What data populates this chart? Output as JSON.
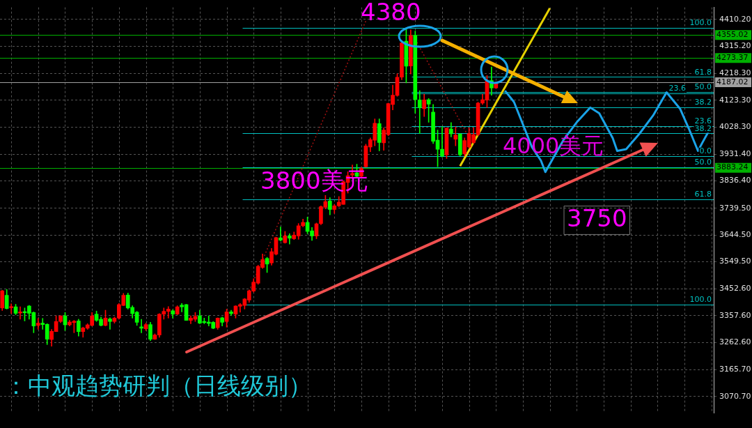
{
  "chart_data": {
    "type": "candlestick",
    "categories": [
      null,
      null,
      null,
      null,
      null,
      null,
      null,
      null,
      null,
      null,
      null,
      null,
      null,
      null,
      null,
      null,
      null,
      null,
      null,
      null,
      null,
      null,
      null,
      null,
      null,
      null,
      null,
      null,
      null,
      null,
      null,
      null,
      null,
      null,
      null,
      null,
      null,
      null,
      null,
      null,
      null,
      null,
      null,
      null,
      null,
      null,
      null,
      null,
      null,
      null,
      null,
      null,
      null,
      null,
      null,
      null,
      null,
      null,
      null,
      null,
      null,
      null,
      null,
      null,
      null,
      null,
      null,
      null,
      null,
      null,
      null,
      null,
      null,
      null,
      null,
      null,
      null,
      null,
      null,
      null,
      null,
      null,
      null,
      null,
      null,
      null,
      null,
      null,
      null,
      null,
      null,
      null,
      null,
      null,
      null,
      null,
      null,
      null,
      null,
      null,
      null,
      null,
      null,
      null,
      null,
      null,
      null,
      null,
      null,
      null,
      null,
      null,
      null,
      null,
      null,
      null,
      null,
      null,
      null,
      null,
      null,
      null,
      null,
      null,
      null,
      null,
      null,
      null,
      null,
      null,
      null,
      null,
      null,
      null,
      null,
      null,
      null,
      null,
      null,
      null,
      null,
      null,
      null,
      null,
      null,
      null,
      null,
      null,
      null,
      null,
      null,
      null,
      null,
      null,
      null,
      null,
      null,
      null,
      null
    ],
    "ohlc": [
      [
        3385,
        3448,
        3376,
        3446
      ],
      [
        3430,
        3451,
        3381,
        3383
      ],
      [
        3386,
        3400,
        3365,
        3390
      ],
      [
        3389,
        3398,
        3361,
        3366
      ],
      [
        3367,
        3389,
        3345,
        3371
      ],
      [
        3372,
        3385,
        3339,
        3368
      ],
      [
        3392,
        3394,
        3345,
        3366
      ],
      [
        3369,
        3371,
        3297,
        3321
      ],
      [
        3323,
        3348,
        3309,
        3331
      ],
      [
        3331,
        3348,
        3309,
        3326
      ],
      [
        3327,
        3329,
        3255,
        3274
      ],
      [
        3273,
        3309,
        3249,
        3302
      ],
      [
        3301,
        3357,
        3301,
        3337
      ],
      [
        3337,
        3357,
        3333,
        3357
      ],
      [
        3357,
        3369,
        3305,
        3325
      ],
      [
        3325,
        3341,
        3321,
        3335
      ],
      [
        3333,
        3341,
        3297,
        3338
      ],
      [
        3339,
        3345,
        3285,
        3301
      ],
      [
        3301,
        3317,
        3281,
        3314
      ],
      [
        3313,
        3329,
        3309,
        3325
      ],
      [
        3323,
        3369,
        3321,
        3357
      ],
      [
        3363,
        3374,
        3337,
        3341
      ],
      [
        3345,
        3353,
        3321,
        3323
      ],
      [
        3323,
        3377,
        3321,
        3349
      ],
      [
        3346,
        3350,
        3309,
        3337
      ],
      [
        3337,
        3353,
        3331,
        3349
      ],
      [
        3349,
        3401,
        3345,
        3397
      ],
      [
        3394,
        3437,
        3393,
        3430
      ],
      [
        3431,
        3438,
        3381,
        3385
      ],
      [
        3387,
        3393,
        3349,
        3365
      ],
      [
        3370,
        3373,
        3323,
        3334
      ],
      [
        3318,
        3345,
        3297,
        3313
      ],
      [
        3311,
        3331,
        3305,
        3326
      ],
      [
        3326,
        3334,
        3269,
        3274
      ],
      [
        3274,
        3293,
        3273,
        3289
      ],
      [
        3289,
        3365,
        3281,
        3363
      ],
      [
        3363,
        3385,
        3345,
        3373
      ],
      [
        3373,
        3390,
        3349,
        3381
      ],
      [
        3375,
        3379,
        3349,
        3363
      ],
      [
        3363,
        3393,
        3361,
        3389
      ],
      [
        3395,
        3401,
        3371,
        3389
      ],
      [
        3397,
        3398,
        3341,
        3341
      ],
      [
        3341,
        3357,
        3329,
        3349
      ],
      [
        3345,
        3369,
        3337,
        3355
      ],
      [
        3357,
        3377,
        3329,
        3331
      ],
      [
        3337,
        3349,
        3329,
        3333
      ],
      [
        3335,
        3357,
        3321,
        3330
      ],
      [
        3334,
        3337,
        3311,
        3313
      ],
      [
        3315,
        3350,
        3309,
        3349
      ],
      [
        3350,
        3353,
        3321,
        3334
      ],
      [
        3337,
        3381,
        3317,
        3371
      ],
      [
        3371,
        3377,
        3359,
        3365
      ],
      [
        3363,
        3393,
        3349,
        3392
      ],
      [
        3391,
        3401,
        3370,
        3397
      ],
      [
        3394,
        3419,
        3381,
        3417
      ],
      [
        3413,
        3449,
        3405,
        3446
      ],
      [
        3445,
        3489,
        3441,
        3477
      ],
      [
        3473,
        3537,
        3469,
        3533
      ],
      [
        3529,
        3577,
        3525,
        3557
      ],
      [
        3561,
        3565,
        3511,
        3541
      ],
      [
        3545,
        3597,
        3537,
        3585
      ],
      [
        3576,
        3637,
        3573,
        3635
      ],
      [
        3634,
        3673,
        3623,
        3626
      ],
      [
        3617,
        3657,
        3615,
        3641
      ],
      [
        3641,
        3649,
        3612,
        3633
      ],
      [
        3631,
        3655,
        3628,
        3644
      ],
      [
        3641,
        3685,
        3629,
        3677
      ],
      [
        3677,
        3701,
        3673,
        3689
      ],
      [
        3689,
        3708,
        3649,
        3657
      ],
      [
        3659,
        3671,
        3625,
        3641
      ],
      [
        3641,
        3687,
        3631,
        3684
      ],
      [
        3685,
        3748,
        3681,
        3745
      ],
      [
        3743,
        3785,
        3737,
        3763
      ],
      [
        3765,
        3777,
        3716,
        3735
      ],
      [
        3735,
        3753,
        3721,
        3748
      ],
      [
        3748,
        3781,
        3745,
        3761
      ],
      [
        3753,
        3837,
        3753,
        3833
      ],
      [
        3831,
        3869,
        3793,
        3855
      ],
      [
        3857,
        3893,
        3845,
        3863
      ],
      [
        3865,
        3896,
        3849,
        3853
      ],
      [
        3853,
        3885,
        3849,
        3881
      ],
      [
        3887,
        3967,
        3885,
        3961
      ],
      [
        3957,
        3989,
        3940,
        3983
      ],
      [
        3981,
        4057,
        3961,
        4041
      ],
      [
        4040,
        4057,
        3943,
        3973
      ],
      [
        3972,
        4025,
        3945,
        4017
      ],
      [
        4001,
        4113,
        3997,
        4111
      ],
      [
        4108,
        4177,
        4089,
        4141
      ],
      [
        4140,
        4217,
        4137,
        4205
      ],
      [
        4205,
        4329,
        4196,
        4327
      ],
      [
        4333,
        4380,
        4185,
        4244
      ],
      [
        4245,
        4373,
        4216,
        4353
      ],
      [
        4353,
        4369,
        4077,
        4125
      ],
      [
        4124,
        4157,
        4005,
        4097
      ],
      [
        4093,
        4145,
        4065,
        4124
      ],
      [
        4125,
        4129,
        4045,
        4109
      ],
      [
        4081,
        4108,
        3969,
        3977
      ],
      [
        3981,
        4017,
        3887,
        3949
      ],
      [
        3949,
        4029,
        3921,
        3925
      ],
      [
        3929,
        4025,
        3916,
        4024
      ],
      [
        4021,
        4044,
        3993,
        4004
      ],
      [
        3985,
        4029,
        3961,
        3999
      ],
      [
        4003,
        4005,
        3925,
        3929
      ],
      [
        3933,
        3989,
        3925,
        3980
      ],
      [
        3957,
        4025,
        3953,
        4005
      ],
      [
        3973,
        4025,
        3969,
        4001
      ],
      [
        4001,
        4116,
        3997,
        4113
      ],
      [
        4113,
        4145,
        4108,
        4125
      ],
      [
        4124,
        4211,
        4097,
        4191
      ],
      [
        4193,
        4241,
        4141,
        4167
      ],
      [
        4167,
        4188,
        4165,
        4185
      ],
      null,
      null,
      null,
      null,
      null,
      null,
      null,
      null,
      null,
      null,
      null,
      null,
      null,
      null,
      null,
      null,
      null,
      null,
      null,
      null,
      null,
      null,
      null,
      null,
      null,
      null,
      null,
      null,
      null,
      null,
      null,
      null,
      null,
      null,
      null,
      null,
      null,
      null,
      null,
      null,
      null,
      null,
      null,
      null,
      null,
      null,
      null,
      null
    ],
    "colors": [
      "#ff0000",
      "#00ff00",
      "#ff0000",
      "#00ff00",
      "#ff0000",
      "#00ff00",
      "#00ff00",
      "#00ff00",
      "#ff0000",
      "#00ff00",
      "#00ff00",
      "#ff0000",
      "#ff0000",
      "#ff0000",
      "#00ff00",
      "#ff0000",
      "#ff0000",
      "#00ff00",
      "#ff0000",
      "#ff0000",
      "#ff0000",
      "#00ff00",
      "#00ff00",
      "#ff0000",
      "#00ff00",
      "#ff0000",
      "#ff0000",
      "#ff0000",
      "#00ff00",
      "#00ff00",
      "#00ff00",
      "#00ff00",
      "#ff0000",
      "#00ff00",
      "#ff0000",
      "#ff0000",
      "#ff0000",
      "#ff0000",
      "#00ff00",
      "#ff0000",
      "#00ff00",
      "#00ff00",
      "#ff0000",
      "#ff0000",
      "#00ff00",
      "#00ff00",
      "#00ff00",
      "#00ff00",
      "#ff0000",
      "#00ff00",
      "#ff0000",
      "#00ff00",
      "#ff0000",
      "#ff0000",
      "#ff0000",
      "#ff0000",
      "#ff0000",
      "#ff0000",
      "#ff0000",
      "#00ff00",
      "#ff0000",
      "#ff0000",
      "#00ff00",
      "#ff0000",
      "#00ff00",
      "#ff0000",
      "#ff0000",
      "#ff0000",
      "#00ff00",
      "#00ff00",
      "#ff0000",
      "#ff0000",
      "#ff0000",
      "#00ff00",
      "#ff0000",
      "#ff0000",
      "#ff0000",
      "#ff0000",
      "#ff0000",
      "#00ff00",
      "#ff0000",
      "#ff0000",
      "#ff0000",
      "#ff0000",
      "#00ff00",
      "#ff0000",
      "#ff0000",
      "#ff0000",
      "#ff0000",
      "#ff0000",
      "#00ff00",
      "#ff0000",
      "#00ff00",
      "#00ff00",
      "#ff0000",
      "#00ff00",
      "#00ff00",
      "#00ff00",
      "#00ff00",
      "#ff0000",
      "#00ff00",
      "#ff0000",
      "#00ff00",
      "#ff0000",
      "#ff0000",
      "#ff0000",
      "#ff0000",
      "#ff0000",
      "#ff0000",
      "#00ff00",
      "#ff0000",
      null,
      null,
      null,
      null,
      null,
      null,
      null,
      null,
      null,
      null,
      null,
      null,
      null,
      null,
      null,
      null,
      null,
      null,
      null,
      null,
      null,
      null,
      null,
      null,
      null,
      null,
      null,
      null,
      null,
      null,
      null,
      null,
      null,
      null,
      null,
      null,
      null,
      null,
      null,
      null,
      null,
      null,
      null,
      null,
      null,
      null,
      null,
      null
    ],
    "series": [
      {
        "type": "line",
        "color": "#1aa3e8",
        "line_style": "solid",
        "values": [
          null,
          null,
          null,
          null,
          null,
          null,
          null,
          null,
          null,
          null,
          null,
          null,
          null,
          null,
          null,
          null,
          null,
          null,
          null,
          null,
          null,
          null,
          null,
          null,
          null,
          null,
          null,
          null,
          null,
          null,
          null,
          null,
          null,
          null,
          null,
          null,
          null,
          null,
          null,
          null,
          null,
          null,
          null,
          null,
          null,
          null,
          null,
          null,
          null,
          null,
          null,
          null,
          null,
          null,
          null,
          null,
          null,
          null,
          null,
          null,
          null,
          null,
          null,
          null,
          null,
          null,
          null,
          null,
          null,
          null,
          null,
          null,
          null,
          null,
          null,
          null,
          null,
          null,
          null,
          null,
          null,
          null,
          null,
          null,
          null,
          null,
          null,
          null,
          null,
          null,
          null,
          null,
          null,
          null,
          null,
          null,
          null,
          null,
          null,
          null,
          null,
          null,
          null,
          null,
          null,
          null,
          null,
          null,
          null,
          null,
          null,
          null,
          4157,
          null,
          4117,
          null,
          4037,
          null,
          3957,
          null,
          3909,
          3868,
          null,
          3925,
          null,
          3981,
          null,
          null,
          4045,
          null,
          null,
          4097,
          null,
          4077,
          null,
          null,
          3989,
          3943,
          null,
          3949,
          null,
          null,
          4005,
          null,
          null,
          4069,
          null,
          null,
          4151,
          null,
          null,
          4093,
          null,
          4021,
          null,
          3943,
          3973,
          null,
          4031
        ]
      },
      {
        "type": "line",
        "color": "#e6d000",
        "line_style": "solid",
        "values": [
          null,
          null,
          null,
          null,
          null,
          null,
          null,
          null,
          null,
          null,
          null,
          null,
          null,
          null,
          null,
          null,
          null,
          null,
          null,
          null,
          null,
          null,
          null,
          null,
          null,
          null,
          null,
          null,
          null,
          null,
          null,
          null,
          null,
          null,
          null,
          null,
          null,
          null,
          null,
          null,
          null,
          null,
          null,
          null,
          null,
          null,
          null,
          null,
          null,
          null,
          null,
          null,
          null,
          null,
          null,
          null,
          null,
          null,
          null,
          null,
          null,
          null,
          null,
          null,
          null,
          null,
          null,
          null,
          null,
          null,
          null,
          null,
          null,
          null,
          null,
          null,
          null,
          null,
          null,
          null,
          null,
          null,
          null,
          null,
          null,
          null,
          null,
          null,
          null,
          null,
          null,
          null,
          null,
          null,
          null,
          null,
          null,
          null,
          null,
          null,
          null,
          null,
          3889,
          null,
          null,
          null,
          null,
          null,
          null,
          null,
          null,
          null,
          null,
          null,
          null,
          null,
          null,
          null,
          null,
          null,
          null,
          null,
          4450,
          null,
          null,
          null,
          null,
          null,
          null,
          null,
          null,
          null,
          null,
          null,
          null,
          null,
          null,
          null,
          null,
          null,
          null,
          null,
          null,
          null,
          null,
          null,
          null,
          null,
          null,
          null,
          null,
          null,
          null,
          null,
          null,
          null,
          null,
          null,
          null
        ]
      },
      {
        "type": "line",
        "color": "#a01010",
        "line_style": "dotted",
        "values": [
          null,
          null,
          null,
          null,
          null,
          null,
          null,
          null,
          null,
          null,
          null,
          null,
          null,
          null,
          null,
          null,
          null,
          null,
          null,
          null,
          null,
          null,
          null,
          null,
          null,
          null,
          null,
          null,
          null,
          null,
          null,
          null,
          null,
          null,
          null,
          null,
          null,
          null,
          null,
          null,
          null,
          null,
          null,
          null,
          null,
          null,
          null,
          null,
          null,
          null,
          null,
          null,
          null,
          null,
          null,
          3445,
          null,
          null,
          null,
          null,
          null,
          null,
          null,
          null,
          null,
          null,
          null,
          null,
          null,
          null,
          null,
          null,
          null,
          null,
          null,
          null,
          null,
          null,
          null,
          null,
          null,
          4405,
          null,
          null,
          null,
          null,
          null,
          null,
          null,
          null,
          null,
          null,
          null,
          null,
          null,
          null,
          null,
          null,
          null,
          null,
          null,
          null,
          null,
          null,
          null,
          null,
          null,
          null,
          null,
          null,
          null,
          null,
          null,
          null,
          null,
          null,
          null,
          null,
          null,
          null,
          null,
          null,
          null,
          null,
          null,
          null,
          null,
          null,
          null,
          null,
          null,
          null,
          null,
          null,
          null,
          null,
          null,
          null,
          null,
          null,
          null,
          null,
          null,
          null,
          null,
          null,
          null,
          null,
          null,
          null,
          null,
          null,
          null,
          null,
          null,
          null,
          null,
          null,
          null
        ]
      },
      {
        "type": "line",
        "color": "#a01010",
        "line_style": "dotted",
        "values": [
          null,
          null,
          null,
          null,
          null,
          null,
          null,
          null,
          null,
          null,
          null,
          null,
          null,
          null,
          null,
          null,
          null,
          null,
          null,
          null,
          null,
          null,
          null,
          null,
          null,
          null,
          null,
          null,
          null,
          null,
          null,
          null,
          null,
          null,
          null,
          null,
          null,
          null,
          null,
          null,
          null,
          null,
          null,
          null,
          null,
          null,
          null,
          null,
          null,
          null,
          null,
          null,
          null,
          null,
          null,
          null,
          null,
          null,
          null,
          null,
          null,
          null,
          null,
          null,
          null,
          null,
          null,
          null,
          null,
          null,
          null,
          null,
          null,
          null,
          null,
          null,
          null,
          null,
          null,
          null,
          null,
          null,
          null,
          null,
          null,
          null,
          null,
          null,
          null,
          null,
          null,
          null,
          4340,
          null,
          null,
          null,
          null,
          null,
          null,
          null,
          null,
          null,
          null,
          null,
          3990,
          null,
          null,
          null,
          null,
          null,
          null,
          null,
          null,
          null,
          null,
          null,
          null,
          null,
          null,
          null,
          null,
          null,
          null,
          null,
          null,
          null,
          null,
          null,
          null,
          null,
          null,
          null,
          null,
          null,
          null,
          null,
          null,
          null,
          null,
          null,
          null,
          null,
          null,
          null,
          null,
          null,
          null,
          null,
          null,
          null,
          null,
          null,
          null,
          null,
          null,
          null,
          null,
          null,
          null
        ]
      }
    ],
    "ylim": [
      3013,
      4453
    ],
    "yticks": [
      {
        "value": 4410.2,
        "label": "4410.20"
      },
      {
        "value": 4315.2,
        "label": "4315.20"
      },
      {
        "value": 4218.3,
        "label": "4218.30"
      },
      {
        "value": 4123.3,
        "label": "4123.30"
      },
      {
        "value": 4028.3,
        "label": "4028.30"
      },
      {
        "value": 3931.4,
        "label": "3931.40"
      },
      {
        "value": 3836.4,
        "label": "3836.40"
      },
      {
        "value": 3739.5,
        "label": "3739.50"
      },
      {
        "value": 3644.5,
        "label": "3644.50"
      },
      {
        "value": 3549.5,
        "label": "3549.50"
      },
      {
        "value": 3452.6,
        "label": "3452.60"
      },
      {
        "value": 3357.6,
        "label": "3357.60"
      },
      {
        "value": 3262.6,
        "label": "3262.60"
      },
      {
        "value": 3165.7,
        "label": "3165.70"
      },
      {
        "value": 3070.7,
        "label": "3070.70"
      }
    ],
    "ref_lines": [
      {
        "axis": "y",
        "value": 4380,
        "color": "#00c0c0"
      },
      {
        "axis": "y",
        "value": 4206,
        "color": "#00c0c0"
      },
      {
        "axis": "y",
        "value": 4152,
        "color": "#00c0c0"
      },
      {
        "axis": "y",
        "value": 4148,
        "color": "#00c0c0"
      },
      {
        "axis": "y",
        "value": 4099,
        "color": "#00c0c0"
      },
      {
        "axis": "y",
        "value": 4032,
        "color": "#00c0c0"
      },
      {
        "axis": "y",
        "value": 4005,
        "color": "#00c0c0"
      },
      {
        "axis": "y",
        "value": 3925,
        "color": "#00c0c0"
      },
      {
        "axis": "y",
        "value": 3885,
        "color": "#00c0c0"
      },
      {
        "axis": "y",
        "value": 3772,
        "color": "#00c0c0"
      },
      {
        "axis": "y",
        "value": 3397,
        "color": "#00c0c0"
      },
      {
        "axis": "y",
        "value": 4355.02,
        "label": "4355.02",
        "color": "#00b000"
      },
      {
        "axis": "y",
        "value": 4273.37,
        "label": "4273.37",
        "color": "#00b000"
      },
      {
        "axis": "y",
        "value": 3883.24,
        "label": "3883.24",
        "color": "#00b000"
      },
      {
        "axis": "y",
        "value": 4187.02,
        "label": "4187.02",
        "color": "#a0a0a0"
      }
    ],
    "annotations": [
      "4380",
      "3800美元",
      "4000美元",
      "3750",
      "：中观趋势研判（日线级别）",
      {
        "text": "100.0",
        "y": 4380
      },
      {
        "text": "61.8",
        "y": 4206
      },
      {
        "text": "50.0",
        "y": 4152
      },
      {
        "text": "23.6",
        "y": 4148
      },
      {
        "text": "38.2",
        "y": 4099
      },
      {
        "text": "23.6",
        "y": 4032
      },
      {
        "text": "38.2",
        "y": 4005
      },
      {
        "text": "0.0",
        "y": 3925
      },
      {
        "text": "50.0",
        "y": 3885
      },
      {
        "text": "61.8",
        "y": 3772
      },
      {
        "text": "100.0",
        "y": 3397
      }
    ],
    "grid": true,
    "legend": false,
    "tick_labels": "y",
    "marker": "none"
  }
}
